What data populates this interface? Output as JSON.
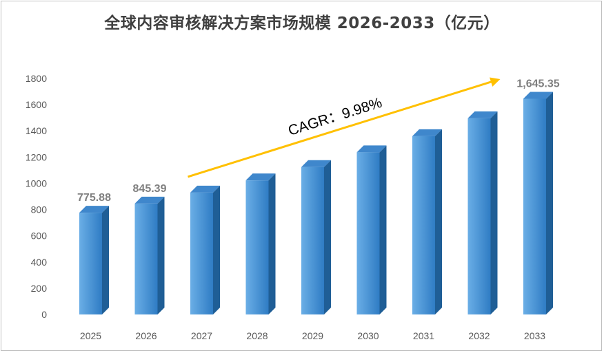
{
  "chart_data": {
    "type": "bar",
    "title": "全球内容审核解决方案市场规模 2026-2033（亿元）",
    "categories": [
      "2025",
      "2026",
      "2027",
      "2028",
      "2029",
      "2030",
      "2031",
      "2032",
      "2033"
    ],
    "values": [
      775.88,
      845.39,
      929.7,
      1022.5,
      1124.5,
      1236.7,
      1360,
      1496,
      1645.35
    ],
    "data_labels": {
      "2025": "775.88",
      "2026": "845.39",
      "2033": "1,645.35"
    },
    "ylim": [
      0,
      1800
    ],
    "yticks": [
      0,
      200,
      400,
      600,
      800,
      1000,
      1200,
      1400,
      1600,
      1800
    ],
    "grid": false,
    "legend": "none",
    "style": "3d-column",
    "annotation": {
      "text": "CAGR：9.98%",
      "arrow_from": "2027",
      "arrow_to": "2033"
    },
    "colors": {
      "bar_front_light": "#6aaee6",
      "bar_front_dark": "#2f7cc4",
      "bar_side": "#1f5e96",
      "bar_top": "#3f87cc",
      "arrow": "#ffc000",
      "tick_text": "#595959",
      "label_text": "#7f7f7f"
    }
  }
}
